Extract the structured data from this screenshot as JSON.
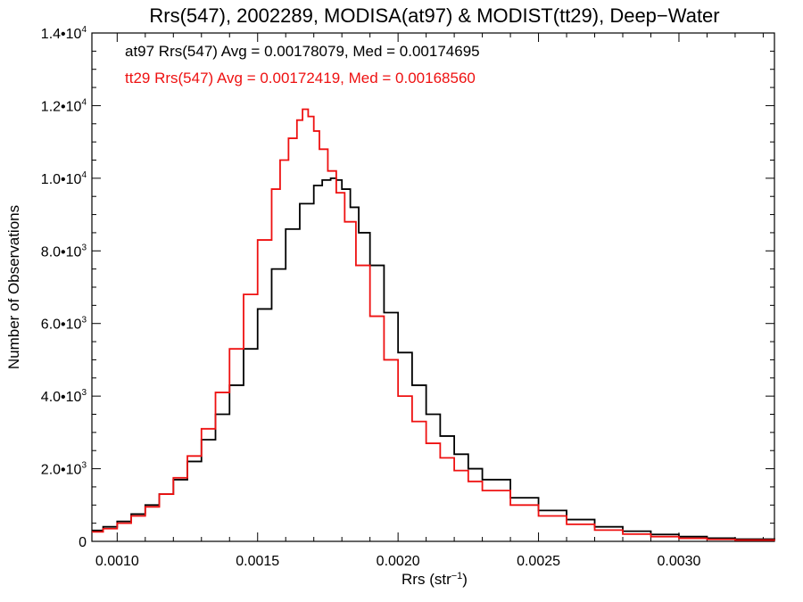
{
  "chart_data": {
    "type": "line",
    "title": "Rrs(547), 2002289, MODISA(at97) & MODIST(tt29), Deep−Water",
    "xlabel": "Rrs (str",
    "xlabel_sup": "−1",
    "xlabel_suffix": ")",
    "ylabel": "Number of Observations",
    "xlim": [
      0.00091,
      0.00334
    ],
    "ylim": [
      0,
      14000
    ],
    "grid": false,
    "x_ticks": [
      {
        "value": 0.001,
        "label": "0.0010"
      },
      {
        "value": 0.0015,
        "label": "0.0015"
      },
      {
        "value": 0.002,
        "label": "0.0020"
      },
      {
        "value": 0.0025,
        "label": "0.0025"
      },
      {
        "value": 0.003,
        "label": "0.0030"
      }
    ],
    "y_ticks": [
      {
        "value": 0,
        "label": "0",
        "sup": ""
      },
      {
        "value": 2000,
        "label": "2.0•10",
        "sup": "3"
      },
      {
        "value": 4000,
        "label": "4.0•10",
        "sup": "3"
      },
      {
        "value": 6000,
        "label": "6.0•10",
        "sup": "3"
      },
      {
        "value": 8000,
        "label": "8.0•10",
        "sup": "3"
      },
      {
        "value": 10000,
        "label": "1.0•10",
        "sup": "4"
      },
      {
        "value": 12000,
        "label": "1.2•10",
        "sup": "4"
      },
      {
        "value": 14000,
        "label": "1.4•10",
        "sup": "4"
      }
    ],
    "annotations": [
      {
        "text": "at97 Rrs(547) Avg = 0.00178079, Med = 0.00174695",
        "color": "#000000"
      },
      {
        "text": "tt29 Rrs(547) Avg = 0.00172419, Med = 0.00168560",
        "color": "#ee1111"
      }
    ],
    "series": [
      {
        "color": "#000000",
        "x": [
          0.00091,
          0.00095,
          0.001,
          0.00105,
          0.0011,
          0.00115,
          0.0012,
          0.00125,
          0.0013,
          0.00135,
          0.0014,
          0.00145,
          0.0015,
          0.00155,
          0.0016,
          0.00165,
          0.0017,
          0.00173,
          0.00176,
          0.00178,
          0.0018,
          0.00183,
          0.00186,
          0.0019,
          0.00195,
          0.002,
          0.00205,
          0.0021,
          0.00215,
          0.0022,
          0.00225,
          0.0023,
          0.0024,
          0.0025,
          0.0026,
          0.0027,
          0.0028,
          0.0029,
          0.003,
          0.0031,
          0.0032,
          0.00334
        ],
        "y": [
          300,
          400,
          550,
          750,
          1000,
          1300,
          1700,
          2200,
          2800,
          3500,
          4300,
          5300,
          6400,
          7500,
          8600,
          9300,
          9800,
          9950,
          10000,
          9950,
          9700,
          9200,
          8500,
          7600,
          6300,
          5200,
          4300,
          3500,
          2900,
          2400,
          2000,
          1700,
          1200,
          850,
          600,
          400,
          280,
          190,
          130,
          90,
          60,
          30
        ]
      },
      {
        "color": "#ee1111",
        "x": [
          0.00091,
          0.00095,
          0.001,
          0.00105,
          0.0011,
          0.00115,
          0.0012,
          0.00125,
          0.0013,
          0.00135,
          0.0014,
          0.00145,
          0.0015,
          0.00155,
          0.00158,
          0.00161,
          0.00164,
          0.00166,
          0.00168,
          0.0017,
          0.00172,
          0.00175,
          0.00178,
          0.00181,
          0.00185,
          0.0019,
          0.00195,
          0.002,
          0.00205,
          0.0021,
          0.00215,
          0.0022,
          0.00225,
          0.0023,
          0.0024,
          0.0025,
          0.0026,
          0.0027,
          0.0028,
          0.0029,
          0.003,
          0.0031,
          0.0032,
          0.00334
        ],
        "y": [
          260,
          350,
          500,
          700,
          950,
          1300,
          1750,
          2350,
          3100,
          4100,
          5300,
          6800,
          8300,
          9700,
          10500,
          11100,
          11600,
          11900,
          11700,
          11300,
          10800,
          10200,
          9600,
          8800,
          7600,
          6200,
          5000,
          4000,
          3300,
          2700,
          2300,
          1950,
          1650,
          1400,
          1000,
          700,
          470,
          310,
          200,
          130,
          85,
          55,
          35,
          20
        ]
      }
    ]
  }
}
